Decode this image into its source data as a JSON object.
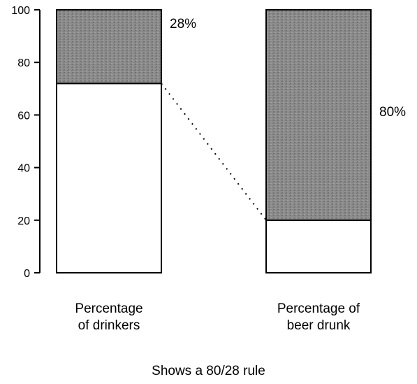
{
  "chart_data": {
    "type": "bar",
    "stacked": true,
    "ylim": [
      0,
      100
    ],
    "yticks": [
      0,
      20,
      40,
      60,
      80,
      100
    ],
    "grid": false,
    "categories": [
      "Percentage\nof drinkers",
      "Percentage of\nbeer drunk"
    ],
    "series": [
      {
        "values": [
          72,
          20
        ],
        "color": "#ffffff"
      },
      {
        "values": [
          28,
          80
        ],
        "color": "#8c8c8c"
      }
    ],
    "annotations": [
      "28%",
      "80%"
    ],
    "connector": {
      "style": "dotted",
      "from_value": 72,
      "to_value": 20
    }
  },
  "caption": "Shows a 80/28 rule"
}
